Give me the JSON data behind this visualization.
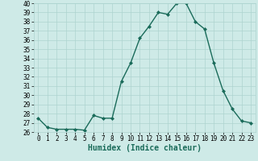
{
  "x": [
    0,
    1,
    2,
    3,
    4,
    5,
    6,
    7,
    8,
    9,
    10,
    11,
    12,
    13,
    14,
    15,
    16,
    17,
    18,
    19,
    20,
    21,
    22,
    23
  ],
  "y": [
    27.5,
    26.5,
    26.3,
    26.3,
    26.3,
    26.2,
    27.8,
    27.5,
    27.5,
    31.5,
    33.5,
    36.2,
    37.5,
    39.0,
    38.8,
    40.0,
    40.0,
    38.0,
    37.2,
    33.5,
    30.5,
    28.5,
    27.2,
    27.0
  ],
  "line_color": "#1a6b5a",
  "marker": "D",
  "marker_size": 2.0,
  "bg_color": "#ceeae7",
  "grid_color": "#aed4d0",
  "xlabel": "Humidex (Indice chaleur)",
  "ylim": [
    26,
    40
  ],
  "xlim": [
    -0.5,
    23.5
  ],
  "yticks": [
    26,
    27,
    28,
    29,
    30,
    31,
    32,
    33,
    34,
    35,
    36,
    37,
    38,
    39,
    40
  ],
  "xticks": [
    0,
    1,
    2,
    3,
    4,
    5,
    6,
    7,
    8,
    9,
    10,
    11,
    12,
    13,
    14,
    15,
    16,
    17,
    18,
    19,
    20,
    21,
    22,
    23
  ],
  "tick_fontsize": 5.5,
  "label_fontsize": 7.0,
  "line_width": 1.0
}
